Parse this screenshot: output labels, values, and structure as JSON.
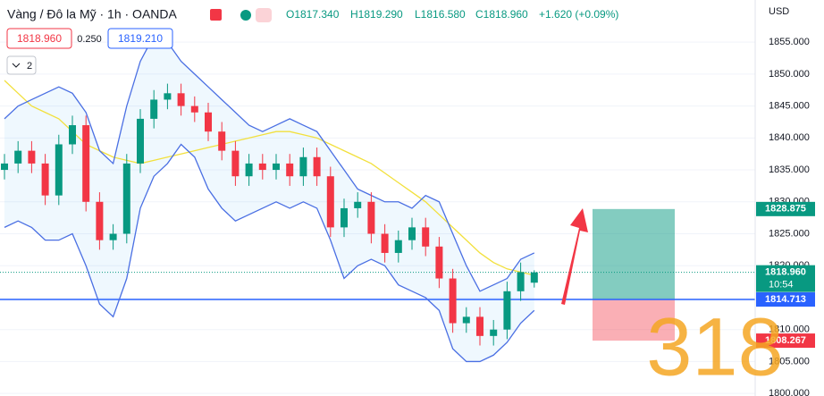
{
  "header": {
    "symbol": "Vàng / Đô la Mỹ · 1h · OANDA",
    "open": "O1817.340",
    "high": "H1819.290",
    "low": "L1816.580",
    "close": "C1818.960",
    "change": "+1.620 (+0.09%)"
  },
  "trade": {
    "sell": "1818.960",
    "spread": "0.250",
    "buy": "1819.210"
  },
  "indicators_toggle": "2",
  "overlay_text": "318",
  "chart_data": {
    "type": "candlestick",
    "currency": "USD",
    "ylim": [
      1799.6,
      1861.6
    ],
    "yticks": [
      {
        "value": 1800,
        "label": "1800.000"
      },
      {
        "value": 1805,
        "label": "1805.000"
      },
      {
        "value": 1810,
        "label": "1810.000"
      },
      {
        "value": 1815,
        "label": "1815.000"
      },
      {
        "value": 1820,
        "label": "1820.000"
      },
      {
        "value": 1825,
        "label": "1825.000"
      },
      {
        "value": 1830,
        "label": "1830.000"
      },
      {
        "value": 1835,
        "label": "1835.000"
      },
      {
        "value": 1840,
        "label": "1840.000"
      },
      {
        "value": 1845,
        "label": "1845.000"
      },
      {
        "value": 1850,
        "label": "1850.000"
      },
      {
        "value": 1855,
        "label": "1855.000"
      }
    ],
    "up_color": "#089981",
    "down_color": "#f23645",
    "open": [
      1835,
      1836,
      1838,
      1836,
      1831,
      1839,
      1842,
      1830,
      1824,
      1825,
      1836,
      1843,
      1846,
      1847,
      1845,
      1844,
      1841,
      1838,
      1834,
      1836,
      1835,
      1836,
      1834,
      1837,
      1834,
      1826,
      1829,
      1830,
      1825,
      1822,
      1824,
      1826,
      1823,
      1818,
      1811,
      1812,
      1809,
      1810,
      1816,
      1817.34
    ],
    "high": [
      1837.5,
      1839.5,
      1839.5,
      1837.5,
      1840.5,
      1843.5,
      1843.5,
      1831.5,
      1826.5,
      1837.5,
      1844.5,
      1847.5,
      1848.5,
      1848.5,
      1846.5,
      1845.5,
      1842.5,
      1839.5,
      1837.5,
      1837.5,
      1837.5,
      1837.5,
      1838.5,
      1838.5,
      1835.5,
      1830.5,
      1831.5,
      1831.5,
      1826.5,
      1825.5,
      1827.5,
      1827.5,
      1824.5,
      1819.5,
      1813.5,
      1813.5,
      1811.5,
      1817.5,
      1820.5,
      1819.29
    ],
    "low": [
      1833.5,
      1834.5,
      1834.5,
      1829.5,
      1829.5,
      1837.5,
      1828.5,
      1822.5,
      1822.5,
      1823.5,
      1834.5,
      1841.5,
      1844.5,
      1843.5,
      1842.5,
      1839.5,
      1836.5,
      1832.5,
      1832.5,
      1833.5,
      1833.5,
      1832.5,
      1832.5,
      1832.5,
      1824.5,
      1824.5,
      1827.5,
      1823.5,
      1820.5,
      1820.5,
      1822.5,
      1821.5,
      1816.5,
      1809.5,
      1809.5,
      1807.5,
      1807.5,
      1808.5,
      1814.5,
      1816.58
    ],
    "close": [
      1836,
      1838,
      1836,
      1831,
      1839,
      1842,
      1830,
      1824,
      1825,
      1836,
      1843,
      1846,
      1847,
      1845,
      1844,
      1841,
      1838,
      1834,
      1836,
      1835,
      1836,
      1834,
      1837,
      1834,
      1826,
      1829,
      1830,
      1825,
      1822,
      1824,
      1826,
      1823,
      1818,
      1811,
      1812,
      1809,
      1810,
      1816,
      1819,
      1818.96
    ],
    "series": [
      {
        "color": "#f2e03c",
        "values": [
          1849,
          1847,
          1845,
          1844,
          1843,
          1841,
          1839,
          1838,
          1837,
          1836.5,
          1836,
          1836.5,
          1837,
          1837.5,
          1838,
          1838.5,
          1839,
          1839.5,
          1840,
          1840.5,
          1841,
          1841,
          1840.5,
          1840,
          1839,
          1838,
          1837,
          1836,
          1834.5,
          1833,
          1831.5,
          1830,
          1828,
          1826,
          1824,
          1822,
          1820.5,
          1819.5,
          1819,
          1818.5
        ]
      },
      {
        "color": "#4a6fe3",
        "values": [
          1843,
          1845,
          1846,
          1847,
          1848,
          1847,
          1844,
          1838,
          1836,
          1845,
          1852,
          1856,
          1855,
          1852,
          1850,
          1848,
          1846,
          1844,
          1842,
          1841,
          1842,
          1843,
          1842,
          1841,
          1838,
          1835,
          1832,
          1831,
          1830,
          1830,
          1829,
          1831,
          1830,
          1825,
          1820,
          1816,
          1817,
          1818,
          1821,
          1822
        ]
      },
      {
        "color": "#4a6fe3",
        "values": [
          1826,
          1827,
          1826,
          1824,
          1824,
          1825,
          1820,
          1814,
          1812,
          1818,
          1829,
          1834,
          1836,
          1839,
          1837,
          1832,
          1829,
          1827,
          1828,
          1829,
          1830,
          1829,
          1830,
          1829,
          1824,
          1818,
          1820,
          1821,
          1820,
          1817,
          1816,
          1815,
          1813,
          1807,
          1805,
          1805,
          1806,
          1808,
          1811,
          1813
        ]
      }
    ],
    "last_price": {
      "value": 1818.96,
      "label": "1818.960",
      "color": "#089981"
    },
    "countdown": "10:54",
    "position": {
      "target": 1828.875,
      "entry": 1814.713,
      "stop": 1808.267,
      "target_color": "#089981",
      "entry_color": "#2962ff",
      "stop_color": "#f23645"
    }
  }
}
